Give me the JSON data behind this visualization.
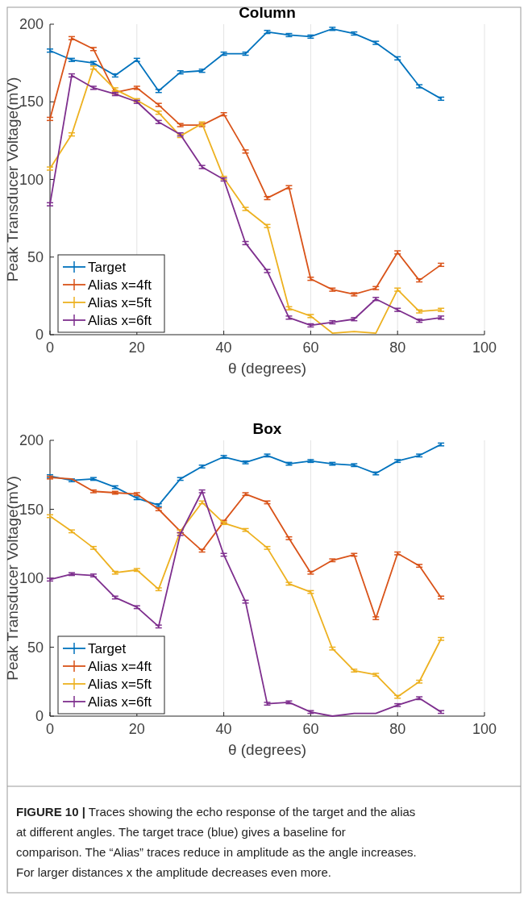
{
  "chart_data": [
    {
      "type": "line",
      "title": "Column",
      "xlabel": "θ (degrees)",
      "ylabel": "Peak Transducer Voltage(mV)",
      "x": [
        0,
        5,
        10,
        15,
        20,
        25,
        30,
        35,
        40,
        45,
        50,
        55,
        60,
        65,
        70,
        75,
        80,
        85,
        90
      ],
      "xlim": [
        0,
        100
      ],
      "ylim": [
        0,
        200
      ],
      "xticks": [
        0,
        20,
        40,
        60,
        80,
        100
      ],
      "yticks": [
        0,
        50,
        100,
        150,
        200
      ],
      "grid": "x",
      "legend": "bottom left",
      "marker": "none",
      "line_style": "solid",
      "series": [
        {
          "name": "Target",
          "color": "#0072bd",
          "values": [
            183,
            177,
            175,
            167,
            177,
            157,
            169,
            170,
            181,
            181,
            195,
            193,
            192,
            197,
            194,
            188,
            178,
            160,
            152
          ],
          "errors": [
            1,
            1,
            1,
            1,
            1,
            1,
            1,
            1,
            1,
            1,
            1,
            1,
            1,
            1,
            1,
            1,
            1,
            1,
            1
          ]
        },
        {
          "name": "Alias x=4ft",
          "color": "#d95319",
          "values": [
            139,
            191,
            184,
            156,
            159,
            148,
            135,
            135,
            142,
            118,
            88,
            95,
            36,
            29,
            26,
            30,
            53,
            35,
            45
          ],
          "errors": [
            1,
            1,
            1,
            1,
            1,
            1,
            1,
            1,
            1,
            1,
            1,
            1,
            1,
            1,
            1,
            1,
            1,
            1,
            1
          ]
        },
        {
          "name": "Alias x=5ft",
          "color": "#edb120",
          "values": [
            107,
            129,
            172,
            158,
            151,
            143,
            128,
            136,
            101,
            81,
            70,
            17,
            12,
            1,
            2,
            1,
            29,
            15,
            16
          ],
          "errors": [
            1,
            1,
            1,
            1,
            1,
            1,
            1,
            1,
            1,
            1,
            1,
            1,
            1,
            null,
            null,
            null,
            1,
            1,
            1
          ]
        },
        {
          "name": "Alias x=6ft",
          "color": "#7e2f8e",
          "values": [
            84,
            167,
            159,
            155,
            150,
            137,
            129,
            108,
            100,
            59,
            41,
            11,
            6,
            8,
            10,
            23,
            16,
            9,
            11
          ],
          "errors": [
            1,
            1,
            1,
            1,
            1,
            1,
            1,
            1,
            1,
            1,
            1,
            1,
            1,
            1,
            1,
            1,
            1,
            1,
            1
          ]
        }
      ]
    },
    {
      "type": "line",
      "title": "Box",
      "xlabel": "θ (degrees)",
      "ylabel": "Peak Transducer Voltage(mV)",
      "x": [
        0,
        5,
        10,
        15,
        20,
        25,
        30,
        35,
        40,
        45,
        50,
        55,
        60,
        65,
        70,
        75,
        80,
        85,
        90
      ],
      "xlim": [
        0,
        100
      ],
      "ylim": [
        0,
        200
      ],
      "xticks": [
        0,
        20,
        40,
        60,
        80,
        100
      ],
      "yticks": [
        0,
        50,
        100,
        150,
        200
      ],
      "grid": "x",
      "legend": "bottom left",
      "marker": "none",
      "line_style": "solid",
      "annotations": [
        "FIGURE 10 | Traces showing the echo response of the target and the alias at different angles. The target trace (blue) gives a baseline for comparison. The “Alias” traces reduce in amplitude as the angle increases. For larger distances x the amplitude decreases even more."
      ],
      "series": [
        {
          "name": "Target",
          "color": "#0072bd",
          "values": [
            174,
            171,
            172,
            166,
            158,
            153,
            172,
            181,
            188,
            184,
            189,
            183,
            185,
            183,
            182,
            176,
            185,
            189,
            197
          ],
          "errors": [
            1,
            1,
            1,
            1,
            1,
            1,
            1,
            1,
            1,
            1,
            1,
            1,
            1,
            1,
            1,
            1,
            1,
            1,
            1
          ]
        },
        {
          "name": "Alias x=4ft",
          "color": "#d95319",
          "values": [
            173,
            172,
            163,
            162,
            161,
            150,
            134,
            120,
            141,
            161,
            155,
            129,
            104,
            113,
            117,
            71,
            118,
            109,
            86
          ],
          "errors": [
            1,
            null,
            1,
            1,
            1,
            1,
            1,
            1,
            1,
            1,
            1,
            1,
            1,
            1,
            1,
            1,
            1,
            1,
            1
          ]
        },
        {
          "name": "Alias x=5ft",
          "color": "#edb120",
          "values": [
            145,
            134,
            122,
            104,
            106,
            92,
            134,
            155,
            140,
            135,
            122,
            96,
            90,
            49,
            33,
            30,
            14,
            25,
            56
          ],
          "errors": [
            1,
            1,
            1,
            1,
            1,
            1,
            1,
            1,
            1,
            1,
            1,
            1,
            1,
            1,
            1,
            1,
            1,
            1,
            1
          ]
        },
        {
          "name": "Alias x=6ft",
          "color": "#7e2f8e",
          "values": [
            99,
            103,
            102,
            86,
            79,
            65,
            132,
            163,
            117,
            83,
            9,
            10,
            3,
            0,
            2,
            2,
            8,
            13,
            3
          ],
          "errors": [
            1,
            1,
            1,
            1,
            1,
            1,
            1,
            1,
            1,
            1,
            1,
            1,
            1,
            null,
            null,
            null,
            1,
            1,
            1
          ]
        }
      ]
    }
  ]
}
